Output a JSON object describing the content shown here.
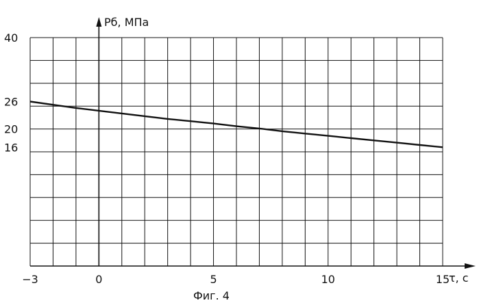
{
  "chart_data": {
    "type": "line",
    "x_label": "τ, с",
    "y_label": "Pб, МПа",
    "xlim": [
      -3,
      15
    ],
    "ylim": [
      -10,
      40
    ],
    "x_ticks": [
      -3,
      0,
      5,
      10,
      15
    ],
    "y_ticks": [
      16,
      20,
      26,
      40
    ],
    "grid": true,
    "series": [
      {
        "x": [
          -3,
          -2,
          -1,
          0,
          1,
          2,
          3,
          4,
          5,
          6,
          7,
          8,
          9,
          10,
          11,
          12,
          13,
          14,
          15
        ],
        "values": [
          26,
          25.3,
          24.6,
          24.0,
          23.4,
          22.8,
          22.2,
          21.7,
          21.2,
          20.6,
          20.1,
          19.5,
          19.0,
          18.5,
          18.0,
          17.5,
          17.0,
          16.5,
          16
        ]
      }
    ]
  },
  "caption": "Фиг. 4"
}
